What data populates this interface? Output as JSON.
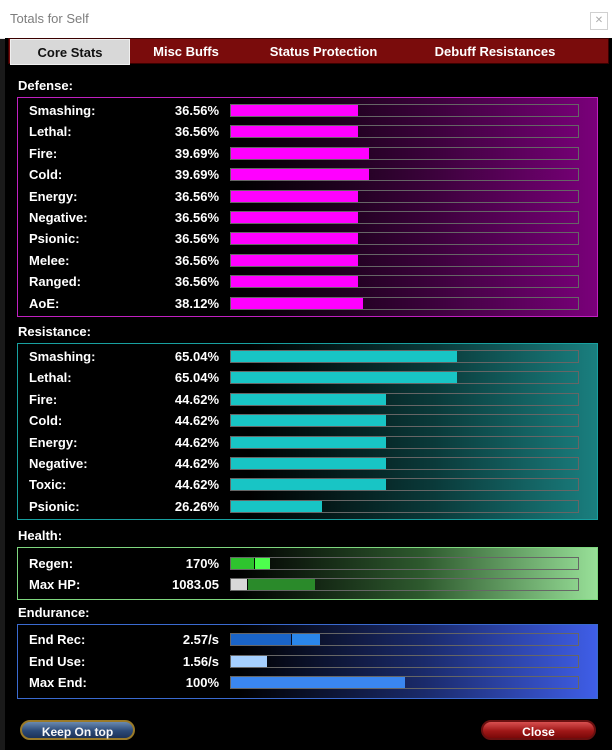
{
  "window": {
    "title": "Totals for Self"
  },
  "tabs": [
    {
      "label": "Core Stats",
      "active": true
    },
    {
      "label": "Misc Buffs",
      "active": false
    },
    {
      "label": "Status Protection",
      "active": false
    },
    {
      "label": "Debuff Resistances",
      "active": false
    }
  ],
  "sections": {
    "defense": {
      "label": "Defense:",
      "color": "#ff00ff",
      "rows": [
        {
          "label": "Smashing:",
          "value": "36.56%",
          "level": 0.3656
        },
        {
          "label": "Lethal:",
          "value": "36.56%",
          "level": 0.3656
        },
        {
          "label": "Fire:",
          "value": "39.69%",
          "level": 0.3969
        },
        {
          "label": "Cold:",
          "value": "39.69%",
          "level": 0.3969
        },
        {
          "label": "Energy:",
          "value": "36.56%",
          "level": 0.3656
        },
        {
          "label": "Negative:",
          "value": "36.56%",
          "level": 0.3656
        },
        {
          "label": "Psionic:",
          "value": "36.56%",
          "level": 0.3656
        },
        {
          "label": "Melee:",
          "value": "36.56%",
          "level": 0.3656
        },
        {
          "label": "Ranged:",
          "value": "36.56%",
          "level": 0.3656
        },
        {
          "label": "AoE:",
          "value": "38.12%",
          "level": 0.3812
        }
      ]
    },
    "resistance": {
      "label": "Resistance:",
      "color": "#18c5c5",
      "rows": [
        {
          "label": "Smashing:",
          "value": "65.04%",
          "level": 0.6504
        },
        {
          "label": "Lethal:",
          "value": "65.04%",
          "level": 0.6504
        },
        {
          "label": "Fire:",
          "value": "44.62%",
          "level": 0.4462
        },
        {
          "label": "Cold:",
          "value": "44.62%",
          "level": 0.4462
        },
        {
          "label": "Energy:",
          "value": "44.62%",
          "level": 0.4462
        },
        {
          "label": "Negative:",
          "value": "44.62%",
          "level": 0.4462
        },
        {
          "label": "Toxic:",
          "value": "44.62%",
          "level": 0.4462
        },
        {
          "label": "Psionic:",
          "value": "26.26%",
          "level": 0.2626
        }
      ]
    },
    "health": {
      "label": "Health:",
      "rows": [
        {
          "label": "Regen:",
          "value": "170%"
        },
        {
          "label": "Max HP:",
          "value": "1083.05"
        }
      ]
    },
    "endurance": {
      "label": "Endurance:",
      "rows": [
        {
          "label": "End Rec:",
          "value": "2.57/s"
        },
        {
          "label": "End Use:",
          "value": "1.56/s"
        },
        {
          "label": "Max End:",
          "value": "100%"
        }
      ]
    }
  },
  "buttons": {
    "keep_on_top": "Keep On top",
    "close": "Close"
  }
}
